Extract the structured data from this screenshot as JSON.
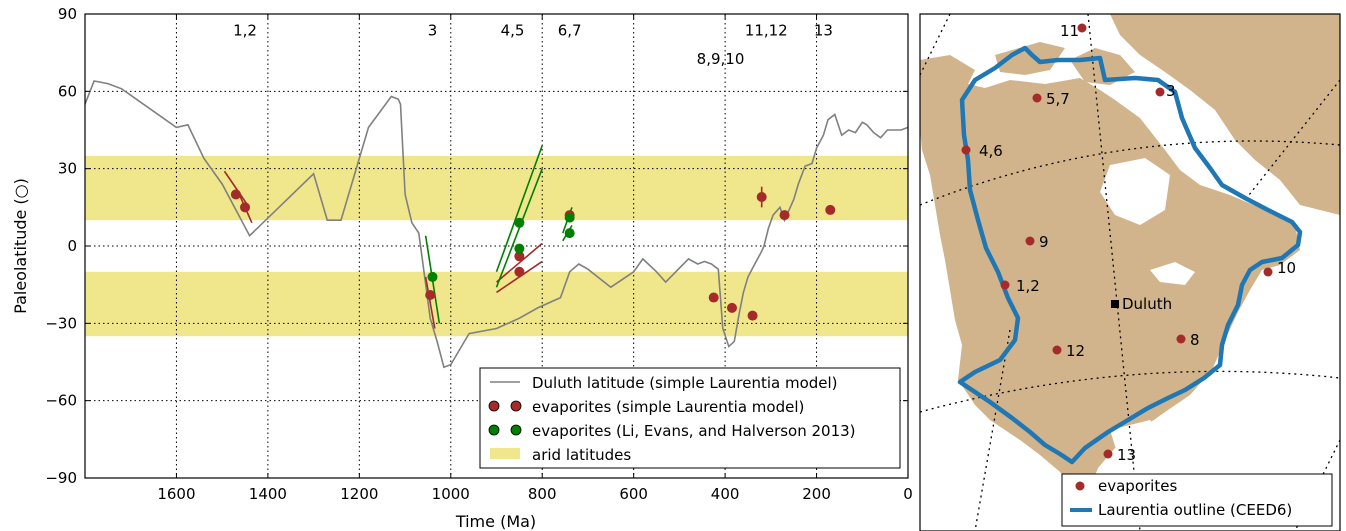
{
  "chart_data": [
    {
      "type": "line",
      "xlabel": "Time (Ma)",
      "ylabel": "Paleolatitude (○)",
      "xlim": [
        1800,
        0
      ],
      "ylim": [
        -90,
        90
      ],
      "x_ticks": [
        "1600",
        "1400",
        "1200",
        "1000",
        "800",
        "600",
        "400",
        "200",
        "0"
      ],
      "y_ticks": [
        "90",
        "60",
        "30",
        "0",
        "−30",
        "−60",
        "−90"
      ],
      "grid": true,
      "legend_position": "lower-right",
      "colors": {
        "duluth": "#808080",
        "evap_simple": "#a52a2a",
        "evap_li": "#008000",
        "arid": "#f0e68c"
      },
      "arid_bands": [
        [
          10,
          35
        ],
        [
          -35,
          -10
        ]
      ],
      "annotations": [
        {
          "text": "1,2",
          "x": 1450,
          "y": 84
        },
        {
          "text": "3",
          "x": 1040,
          "y": 84
        },
        {
          "text": "4,5",
          "x": 865,
          "y": 84
        },
        {
          "text": "6,7",
          "x": 740,
          "y": 84
        },
        {
          "text": "11,12",
          "x": 310,
          "y": 84
        },
        {
          "text": "13",
          "x": 185,
          "y": 84
        },
        {
          "text": "8,9,10",
          "x": 410,
          "y": 73
        }
      ],
      "series": [
        {
          "name": "Duluth latitude (simple Laurentia model)",
          "x": [
            1800,
            1780,
            1750,
            1720,
            1600,
            1575,
            1540,
            1500,
            1470,
            1440,
            1300,
            1270,
            1240,
            1180,
            1130,
            1115,
            1110,
            1100,
            1085,
            1070,
            1060,
            1045,
            1030,
            1015,
            1000,
            980,
            960,
            900,
            850,
            810,
            760,
            740,
            720,
            700,
            650,
            600,
            580,
            550,
            530,
            480,
            460,
            445,
            430,
            415,
            405,
            392,
            380,
            370,
            360,
            350,
            335,
            320,
            315,
            305,
            295,
            280,
            270,
            250,
            240,
            225,
            210,
            200,
            185,
            175,
            160,
            145,
            130,
            115,
            100,
            90,
            75,
            60,
            45,
            30,
            15,
            0
          ],
          "y": [
            55,
            64,
            63,
            61,
            46,
            47,
            34,
            24,
            14,
            4,
            28,
            10,
            10,
            46,
            58,
            57,
            55,
            20,
            9,
            5,
            -8,
            -28,
            -37,
            -47,
            -46,
            -40,
            -34,
            -32,
            -28,
            -24,
            -20,
            -10,
            -7,
            -9,
            -16,
            -10,
            -5,
            -10,
            -14,
            -5,
            -7,
            -6,
            -7,
            -9,
            -32,
            -39,
            -37,
            -27,
            -18,
            -12,
            -7,
            -2,
            0,
            7,
            12,
            15,
            10,
            18,
            24,
            31,
            32,
            38,
            43,
            49,
            51,
            43,
            45,
            44,
            48,
            47,
            44,
            42,
            45,
            45,
            45,
            46
          ]
        },
        {
          "name": "evaporites (simple Laurentia model)",
          "points": [
            [
              1470,
              20
            ],
            [
              1450,
              15
            ],
            [
              1045,
              -19
            ],
            [
              850,
              -4
            ],
            [
              850,
              -10
            ],
            [
              740,
              12
            ],
            [
              425,
              -20
            ],
            [
              385,
              -24
            ],
            [
              340,
              -27
            ],
            [
              320,
              19
            ],
            [
              270,
              12
            ],
            [
              170,
              14
            ]
          ],
          "error_bars": [
            [
              1495,
              29,
              1445,
              16
            ],
            [
              1465,
              21,
              1435,
              9
            ],
            [
              1055,
              -12,
              1035,
              -32
            ],
            [
              900,
              -14,
              800,
              1
            ],
            [
              900,
              -18,
              800,
              -6
            ],
            [
              735,
              13,
              745,
              11
            ],
            [
              425,
              -20,
              425,
              -20
            ],
            [
              385,
              -24,
              385,
              -24
            ],
            [
              340,
              -27,
              340,
              -27
            ],
            [
              320,
              23,
              320,
              15
            ],
            [
              270,
              12,
              270,
              12
            ],
            [
              170,
              14,
              170,
              14
            ]
          ]
        },
        {
          "name": "evaporites (Li, Evans, and Halverson 2013)",
          "points": [
            [
              1040,
              -12
            ],
            [
              850,
              9
            ],
            [
              850,
              -1
            ],
            [
              740,
              11
            ],
            [
              740,
              5
            ]
          ],
          "error_bars": [
            [
              1055,
              4,
              1025,
              -30
            ],
            [
              900,
              -10,
              800,
              39
            ],
            [
              900,
              -16,
              800,
              30
            ],
            [
              755,
              5,
              735,
              15
            ],
            [
              755,
              2,
              735,
              8
            ]
          ]
        },
        {
          "name": "arid latitudes"
        }
      ]
    },
    {
      "type": "map",
      "legend": [
        {
          "name": "evaporites",
          "color": "#a52a2a"
        },
        {
          "name": "Laurentia outline (CEED6)",
          "color": "#1f77b4"
        }
      ],
      "colors": {
        "land": "#d2b48c",
        "outline": "#1f77b4"
      },
      "places": [
        "Duluth"
      ],
      "sites": [
        {
          "label": "11"
        },
        {
          "label": "3"
        },
        {
          "label": "5,7"
        },
        {
          "label": "4,6"
        },
        {
          "label": "9"
        },
        {
          "label": "10"
        },
        {
          "label": "1,2"
        },
        {
          "label": "8"
        },
        {
          "label": "12"
        },
        {
          "label": "13"
        }
      ]
    }
  ]
}
